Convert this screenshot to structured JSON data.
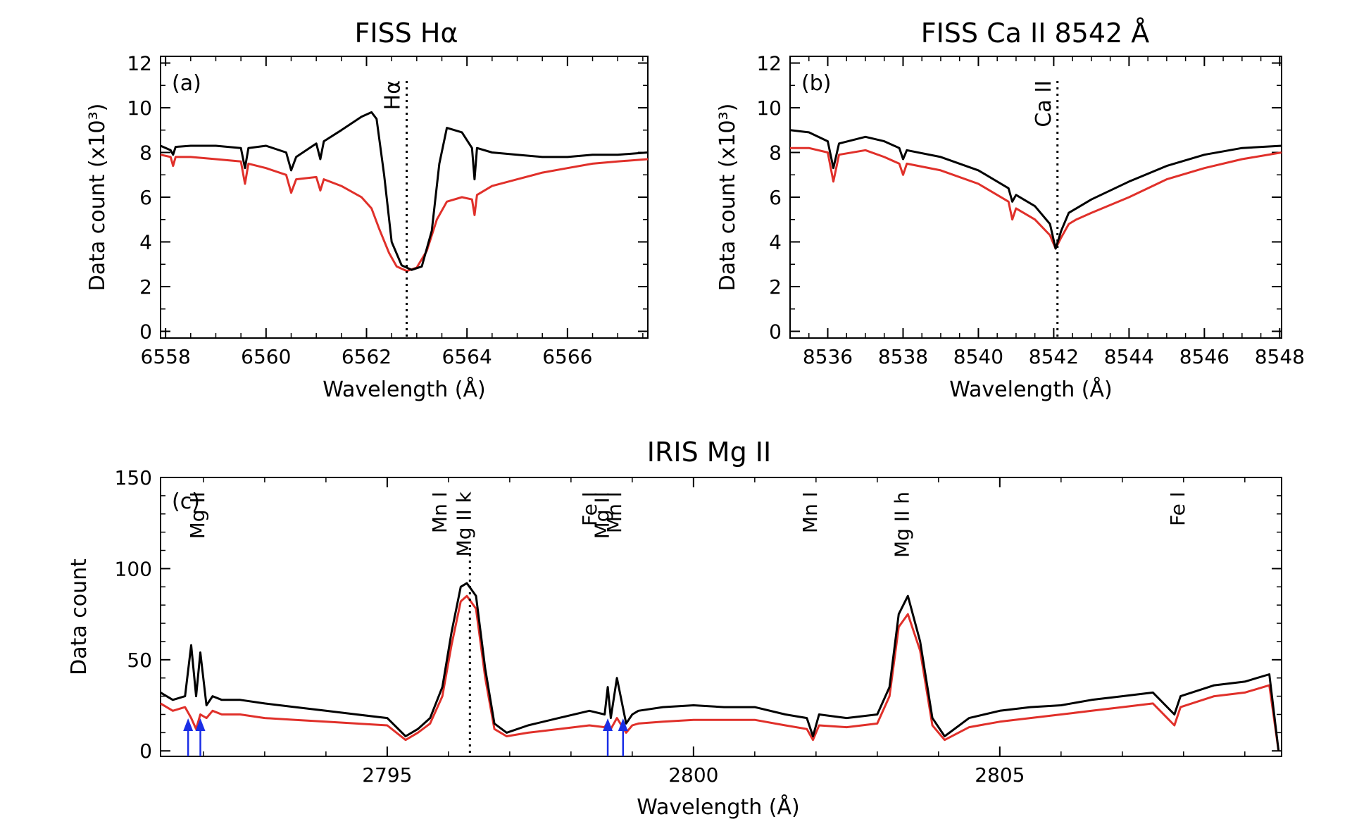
{
  "colors": {
    "black": "#000000",
    "red": "#e0302a",
    "blue": "#1a2ee6"
  },
  "chart_data": [
    {
      "type": "line",
      "panel_label": "(a)",
      "title": "FISS Hα",
      "xlabel": "Wavelength (Å)",
      "ylabel": "Data count (x10³)",
      "xlim": [
        6557.9,
        6567.6
      ],
      "ylim": [
        -0.3,
        12.3
      ],
      "xticks": [
        6558,
        6560,
        6562,
        6564,
        6566
      ],
      "xtick_labels": [
        "6558",
        "6560",
        "6562",
        "6564",
        "6566"
      ],
      "yticks": [
        0,
        2,
        4,
        6,
        8,
        10,
        12
      ],
      "ytick_labels": [
        "0",
        "2",
        "4",
        "6",
        "8",
        "10",
        "12"
      ],
      "line_center": 6562.8,
      "line_label": "Hα",
      "series": [
        {
          "color": "#000000",
          "x": [
            6557.9,
            6558.1,
            6558.15,
            6558.2,
            6558.5,
            6559.0,
            6559.5,
            6559.58,
            6559.65,
            6560.0,
            6560.4,
            6560.5,
            6560.6,
            6561.0,
            6561.08,
            6561.15,
            6561.5,
            6561.9,
            6562.1,
            6562.2,
            6562.35,
            6562.5,
            6562.7,
            6562.9,
            6563.1,
            6563.3,
            6563.45,
            6563.6,
            6563.9,
            6564.1,
            6564.15,
            6564.2,
            6564.5,
            6565.0,
            6565.5,
            6566.0,
            6566.5,
            6567.0,
            6567.6
          ],
          "y": [
            8.3,
            8.1,
            7.9,
            8.25,
            8.3,
            8.3,
            8.2,
            7.3,
            8.2,
            8.3,
            8.0,
            7.2,
            7.8,
            8.4,
            7.7,
            8.5,
            9.0,
            9.6,
            9.8,
            9.5,
            7.0,
            4.0,
            2.95,
            2.75,
            2.9,
            4.5,
            7.5,
            9.1,
            8.9,
            8.2,
            6.8,
            8.2,
            8.0,
            7.9,
            7.8,
            7.8,
            7.9,
            7.9,
            8.0
          ]
        },
        {
          "color": "#e0302a",
          "x": [
            6557.9,
            6558.1,
            6558.15,
            6558.2,
            6558.5,
            6559.0,
            6559.5,
            6559.58,
            6559.65,
            6560.0,
            6560.4,
            6560.5,
            6560.6,
            6561.0,
            6561.08,
            6561.15,
            6561.5,
            6561.9,
            6562.1,
            6562.25,
            6562.45,
            6562.6,
            6562.8,
            6563.0,
            6563.2,
            6563.4,
            6563.6,
            6563.9,
            6564.1,
            6564.15,
            6564.2,
            6564.5,
            6565.0,
            6565.5,
            6566.0,
            6566.5,
            6567.0,
            6567.6
          ],
          "y": [
            7.9,
            7.8,
            7.4,
            7.8,
            7.8,
            7.7,
            7.6,
            6.6,
            7.5,
            7.3,
            7.0,
            6.2,
            6.8,
            6.9,
            6.3,
            6.8,
            6.5,
            6.0,
            5.5,
            4.6,
            3.5,
            2.9,
            2.7,
            2.85,
            3.6,
            5.0,
            5.8,
            6.0,
            5.9,
            5.2,
            6.1,
            6.5,
            6.8,
            7.1,
            7.3,
            7.5,
            7.6,
            7.7
          ]
        }
      ]
    },
    {
      "type": "line",
      "panel_label": "(b)",
      "title": "FISS Ca II 8542 Å",
      "xlabel": "Wavelength (Å)",
      "ylabel": "Data count (x10³)",
      "xlim": [
        8535.0,
        8548.05
      ],
      "ylim": [
        -0.3,
        12.3
      ],
      "xticks": [
        8536,
        8538,
        8540,
        8542,
        8544,
        8546,
        8548
      ],
      "xtick_labels": [
        "8536",
        "8538",
        "8540",
        "8542",
        "8544",
        "8546",
        "8548"
      ],
      "yticks": [
        0,
        2,
        4,
        6,
        8,
        10,
        12
      ],
      "ytick_labels": [
        "0",
        "2",
        "4",
        "6",
        "8",
        "10",
        "12"
      ],
      "line_center": 8542.1,
      "line_label": "Ca II",
      "series": [
        {
          "color": "#000000",
          "x": [
            8535.0,
            8535.5,
            8536.0,
            8536.15,
            8536.3,
            8537.0,
            8537.5,
            8537.9,
            8538.0,
            8538.1,
            8539.0,
            8540.0,
            8540.8,
            8540.9,
            8541.0,
            8541.5,
            8541.9,
            8542.05,
            8542.2,
            8542.4,
            8542.6,
            8543.0,
            8544.0,
            8545.0,
            8546.0,
            8547.0,
            8548.05
          ],
          "y": [
            9.0,
            8.9,
            8.5,
            7.3,
            8.4,
            8.7,
            8.5,
            8.2,
            7.7,
            8.1,
            7.8,
            7.2,
            6.4,
            5.8,
            6.1,
            5.6,
            4.8,
            3.7,
            4.5,
            5.3,
            5.5,
            5.9,
            6.7,
            7.4,
            7.9,
            8.2,
            8.3
          ]
        },
        {
          "color": "#e0302a",
          "x": [
            8535.0,
            8535.5,
            8536.0,
            8536.15,
            8536.3,
            8537.0,
            8537.5,
            8537.9,
            8538.0,
            8538.1,
            8539.0,
            8540.0,
            8540.8,
            8540.9,
            8541.0,
            8541.5,
            8541.9,
            8542.05,
            8542.2,
            8542.4,
            8542.6,
            8543.0,
            8544.0,
            8545.0,
            8546.0,
            8547.0,
            8548.05
          ],
          "y": [
            8.2,
            8.2,
            8.0,
            6.7,
            7.9,
            8.1,
            7.8,
            7.5,
            7.0,
            7.5,
            7.2,
            6.6,
            5.8,
            5.0,
            5.5,
            5.0,
            4.3,
            3.7,
            4.2,
            4.8,
            5.0,
            5.3,
            6.0,
            6.8,
            7.3,
            7.7,
            8.0
          ]
        }
      ]
    },
    {
      "type": "line",
      "panel_label": "(c)",
      "title": "IRIS Mg II",
      "xlabel": "Wavelength (Å)",
      "ylabel": "Data count",
      "xlim": [
        2791.3,
        2809.6
      ],
      "ylim": [
        -3,
        150
      ],
      "xticks": [
        2795,
        2800,
        2805
      ],
      "xtick_labels": [
        "2795",
        "2800",
        "2805"
      ],
      "yticks": [
        0,
        50,
        100,
        150
      ],
      "ytick_labels": [
        "0",
        "50",
        "100",
        "150"
      ],
      "line_center": 2796.35,
      "line_labels": [
        {
          "text": "Mg II",
          "x": 2791.9
        },
        {
          "text": "Mn I",
          "x": 2795.85
        },
        {
          "text": "Mg II k",
          "x": 2796.25
        },
        {
          "text": "Fe I",
          "x": 2798.3
        },
        {
          "text": "Mg II",
          "x": 2798.5
        },
        {
          "text": "Mn I",
          "x": 2798.7
        },
        {
          "text": "Mn I",
          "x": 2801.9
        },
        {
          "text": "Mg II h",
          "x": 2803.4
        },
        {
          "text": "Fe I",
          "x": 2807.9
        }
      ],
      "arrows_x": [
        2791.75,
        2791.95,
        2798.6,
        2798.85
      ],
      "series": [
        {
          "color": "#000000",
          "x": [
            2791.3,
            2791.5,
            2791.7,
            2791.8,
            2791.88,
            2791.95,
            2792.05,
            2792.15,
            2792.3,
            2792.6,
            2793.0,
            2793.5,
            2794.0,
            2794.5,
            2795.0,
            2795.3,
            2795.5,
            2795.7,
            2795.9,
            2796.05,
            2796.2,
            2796.3,
            2796.45,
            2796.6,
            2796.75,
            2796.95,
            2797.3,
            2797.8,
            2798.3,
            2798.55,
            2798.6,
            2798.65,
            2798.75,
            2798.9,
            2799.0,
            2799.1,
            2799.5,
            2800.0,
            2800.5,
            2801.0,
            2801.5,
            2801.85,
            2801.95,
            2802.05,
            2802.5,
            2803.0,
            2803.2,
            2803.35,
            2803.5,
            2803.7,
            2803.9,
            2804.1,
            2804.5,
            2805.0,
            2805.5,
            2806.0,
            2806.5,
            2807.0,
            2807.5,
            2807.85,
            2807.95,
            2808.5,
            2809.0,
            2809.4,
            2809.55
          ],
          "y": [
            32,
            28,
            30,
            58,
            30,
            54,
            25,
            30,
            28,
            28,
            26,
            24,
            22,
            20,
            18,
            8,
            12,
            18,
            35,
            65,
            90,
            92,
            85,
            45,
            15,
            10,
            14,
            18,
            22,
            20,
            35,
            18,
            40,
            15,
            20,
            22,
            24,
            25,
            24,
            24,
            20,
            18,
            8,
            20,
            18,
            20,
            35,
            75,
            85,
            60,
            18,
            8,
            18,
            22,
            24,
            25,
            28,
            30,
            32,
            20,
            30,
            36,
            38,
            42,
            0
          ]
        },
        {
          "color": "#e0302a",
          "x": [
            2791.3,
            2791.5,
            2791.7,
            2791.8,
            2791.88,
            2791.95,
            2792.05,
            2792.15,
            2792.3,
            2792.6,
            2793.0,
            2793.5,
            2794.0,
            2794.5,
            2795.0,
            2795.3,
            2795.5,
            2795.7,
            2795.9,
            2796.05,
            2796.2,
            2796.3,
            2796.45,
            2796.6,
            2796.75,
            2796.95,
            2797.3,
            2797.8,
            2798.3,
            2798.55,
            2798.6,
            2798.65,
            2798.75,
            2798.9,
            2799.0,
            2799.1,
            2799.5,
            2800.0,
            2800.5,
            2801.0,
            2801.5,
            2801.85,
            2801.95,
            2802.05,
            2802.5,
            2803.0,
            2803.2,
            2803.35,
            2803.5,
            2803.7,
            2803.9,
            2804.1,
            2804.5,
            2805.0,
            2805.5,
            2806.0,
            2806.5,
            2807.0,
            2807.5,
            2807.85,
            2807.95,
            2808.5,
            2809.0,
            2809.4,
            2809.55
          ],
          "y": [
            26,
            22,
            24,
            18,
            12,
            20,
            18,
            22,
            20,
            20,
            18,
            17,
            16,
            15,
            14,
            6,
            10,
            15,
            30,
            58,
            82,
            85,
            78,
            40,
            12,
            8,
            10,
            12,
            14,
            13,
            16,
            12,
            18,
            10,
            14,
            15,
            16,
            17,
            17,
            17,
            14,
            12,
            6,
            14,
            13,
            15,
            30,
            68,
            75,
            55,
            14,
            6,
            13,
            16,
            18,
            20,
            22,
            24,
            26,
            14,
            24,
            30,
            32,
            36,
            0
          ]
        }
      ]
    }
  ]
}
